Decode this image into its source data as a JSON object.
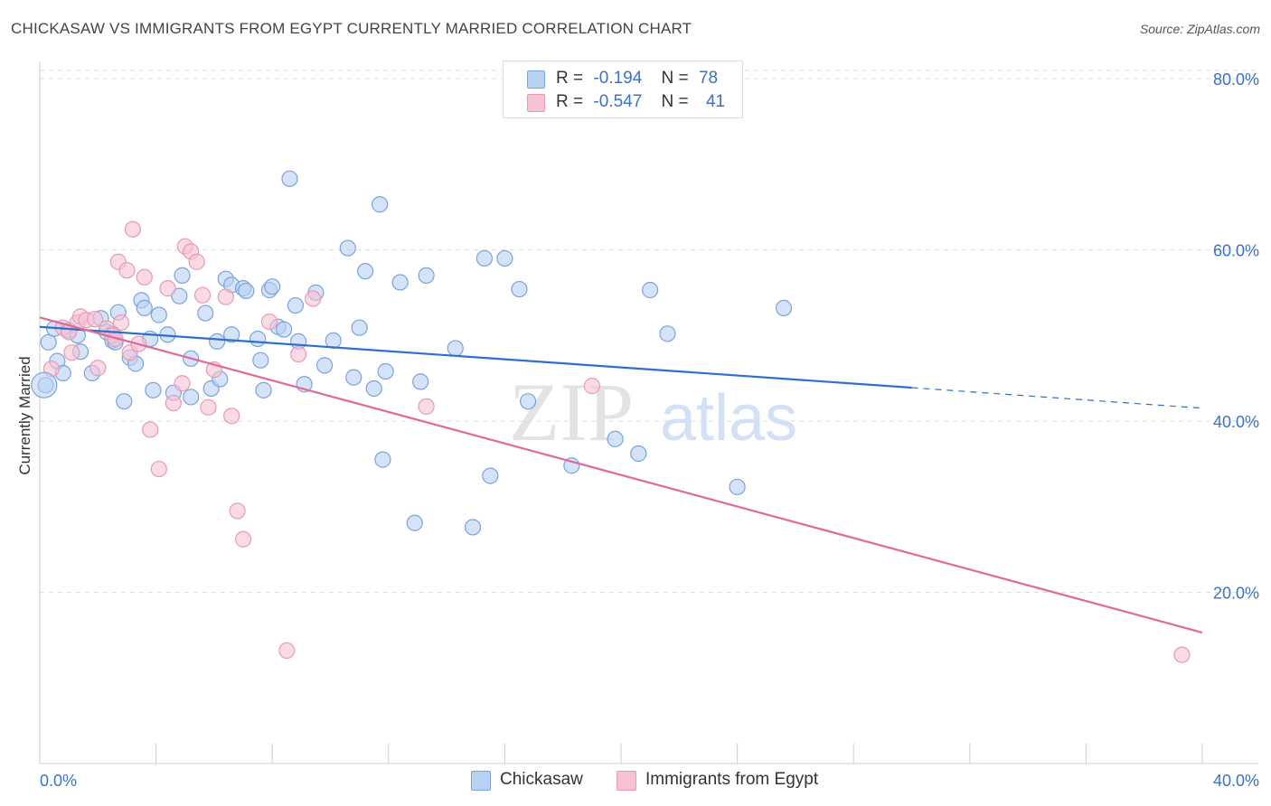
{
  "title": "CHICKASAW VS IMMIGRANTS FROM EGYPT CURRENTLY MARRIED CORRELATION CHART",
  "source": "Source: ZipAtlas.com",
  "watermark": {
    "zip": "ZIP",
    "atlas": "atlas"
  },
  "colors": {
    "blue_fill": "#b9d1f3",
    "blue_stroke": "#7aa3dd",
    "blue_line": "#2f6fcc",
    "pink_fill": "#f7c2d4",
    "pink_stroke": "#e89ab4",
    "pink_line": "#e06a95",
    "axis_text": "#3a72c4",
    "grid": "#dddddd"
  },
  "legend": {
    "rows": [
      {
        "r_label": "R =",
        "r_value": "-0.194",
        "n_label": "N =",
        "n_value": "78"
      },
      {
        "r_label": "R =",
        "r_value": "-0.547",
        "n_label": "N =",
        "n_value": "41"
      }
    ]
  },
  "bottom_legend": [
    "Chickasaw",
    "Immigrants from Egypt"
  ],
  "chart_data": {
    "type": "scatter",
    "title": "CHICKASAW VS IMMIGRANTS FROM EGYPT CURRENTLY MARRIED CORRELATION CHART",
    "xlabel": "",
    "ylabel": "Currently Married",
    "xlim": [
      0,
      40
    ],
    "ylim": [
      0,
      82
    ],
    "x_tick_labels": [
      "0.0%",
      "40.0%"
    ],
    "y_ticks": [
      20,
      40,
      60,
      80
    ],
    "y_tick_labels": [
      "20.0%",
      "40.0%",
      "60.0%",
      "80.0%"
    ],
    "grid": true,
    "legend_position": "top-center",
    "series": [
      {
        "name": "Chickasaw",
        "r": -0.194,
        "n": 78,
        "trend": {
          "x0": 0,
          "y0": 51.0,
          "x1": 30.0,
          "y1": 43.9,
          "dashed_to_x": 40.0,
          "dashed_to_y": 41.5
        },
        "points": [
          [
            0.3,
            49.2
          ],
          [
            0.6,
            47.0
          ],
          [
            0.8,
            45.6
          ],
          [
            0.5,
            50.8
          ],
          [
            1.0,
            50.6
          ],
          [
            1.3,
            50.0
          ],
          [
            1.4,
            48.1
          ],
          [
            1.8,
            45.6
          ],
          [
            2.1,
            52.0
          ],
          [
            2.3,
            50.4
          ],
          [
            2.5,
            50.2
          ],
          [
            2.5,
            49.4
          ],
          [
            2.6,
            49.2
          ],
          [
            2.7,
            52.7
          ],
          [
            2.9,
            42.3
          ],
          [
            3.1,
            47.4
          ],
          [
            3.3,
            46.7
          ],
          [
            3.5,
            54.1
          ],
          [
            3.6,
            53.2
          ],
          [
            3.8,
            49.6
          ],
          [
            3.9,
            43.6
          ],
          [
            4.1,
            52.4
          ],
          [
            4.4,
            50.1
          ],
          [
            4.6,
            43.3
          ],
          [
            4.8,
            54.6
          ],
          [
            4.9,
            57.0
          ],
          [
            5.2,
            42.8
          ],
          [
            5.2,
            47.3
          ],
          [
            5.7,
            52.6
          ],
          [
            5.9,
            43.8
          ],
          [
            6.1,
            49.3
          ],
          [
            6.2,
            44.9
          ],
          [
            6.4,
            56.6
          ],
          [
            6.6,
            50.1
          ],
          [
            6.6,
            55.9
          ],
          [
            7.0,
            55.5
          ],
          [
            7.1,
            55.2
          ],
          [
            7.5,
            49.6
          ],
          [
            7.6,
            47.1
          ],
          [
            7.7,
            43.6
          ],
          [
            7.9,
            55.3
          ],
          [
            8.0,
            55.7
          ],
          [
            8.2,
            51.0
          ],
          [
            8.4,
            50.7
          ],
          [
            8.6,
            68.3
          ],
          [
            8.9,
            49.3
          ],
          [
            8.8,
            53.5
          ],
          [
            9.1,
            44.3
          ],
          [
            9.5,
            55.0
          ],
          [
            9.8,
            46.5
          ],
          [
            10.1,
            49.4
          ],
          [
            10.6,
            60.2
          ],
          [
            10.8,
            45.1
          ],
          [
            11.0,
            50.9
          ],
          [
            11.2,
            57.5
          ],
          [
            11.5,
            43.8
          ],
          [
            11.7,
            65.3
          ],
          [
            11.8,
            35.5
          ],
          [
            11.9,
            45.8
          ],
          [
            12.4,
            56.2
          ],
          [
            12.9,
            28.1
          ],
          [
            13.1,
            44.6
          ],
          [
            13.3,
            57.0
          ],
          [
            14.3,
            48.5
          ],
          [
            14.9,
            27.6
          ],
          [
            15.3,
            59.0
          ],
          [
            15.5,
            33.6
          ],
          [
            16.0,
            59.0
          ],
          [
            16.5,
            55.4
          ],
          [
            16.8,
            42.3
          ],
          [
            18.3,
            34.8
          ],
          [
            19.8,
            37.9
          ],
          [
            20.6,
            36.2
          ],
          [
            21.0,
            55.3
          ],
          [
            21.6,
            50.2
          ],
          [
            24.0,
            32.3
          ],
          [
            25.6,
            53.2
          ],
          [
            0.2,
            44.2
          ]
        ]
      },
      {
        "name": "Immigrants from Egypt",
        "r": -0.547,
        "n": 41,
        "trend": {
          "x0": 0,
          "y0": 52.1,
          "x1": 40.0,
          "y1": 15.3
        },
        "points": [
          [
            0.4,
            46.1
          ],
          [
            0.8,
            50.9
          ],
          [
            1.0,
            50.4
          ],
          [
            1.1,
            48.0
          ],
          [
            1.3,
            51.5
          ],
          [
            1.4,
            52.2
          ],
          [
            1.6,
            51.8
          ],
          [
            1.9,
            51.9
          ],
          [
            2.0,
            46.2
          ],
          [
            2.3,
            50.8
          ],
          [
            2.5,
            50.0
          ],
          [
            2.6,
            49.6
          ],
          [
            2.8,
            51.5
          ],
          [
            2.7,
            58.6
          ],
          [
            3.0,
            57.6
          ],
          [
            3.1,
            48.0
          ],
          [
            3.2,
            62.4
          ],
          [
            3.4,
            49.0
          ],
          [
            3.6,
            56.8
          ],
          [
            3.8,
            39.0
          ],
          [
            4.1,
            34.4
          ],
          [
            4.4,
            55.5
          ],
          [
            4.6,
            42.1
          ],
          [
            4.9,
            44.4
          ],
          [
            5.0,
            60.4
          ],
          [
            5.2,
            59.8
          ],
          [
            5.4,
            58.6
          ],
          [
            5.6,
            54.7
          ],
          [
            5.8,
            41.6
          ],
          [
            6.0,
            46.0
          ],
          [
            6.4,
            54.5
          ],
          [
            6.6,
            40.6
          ],
          [
            6.8,
            29.5
          ],
          [
            7.0,
            26.2
          ],
          [
            7.9,
            51.6
          ],
          [
            8.5,
            13.2
          ],
          [
            8.9,
            47.8
          ],
          [
            9.4,
            54.3
          ],
          [
            13.3,
            41.7
          ],
          [
            19.0,
            44.1
          ],
          [
            39.3,
            12.7
          ]
        ]
      }
    ]
  }
}
